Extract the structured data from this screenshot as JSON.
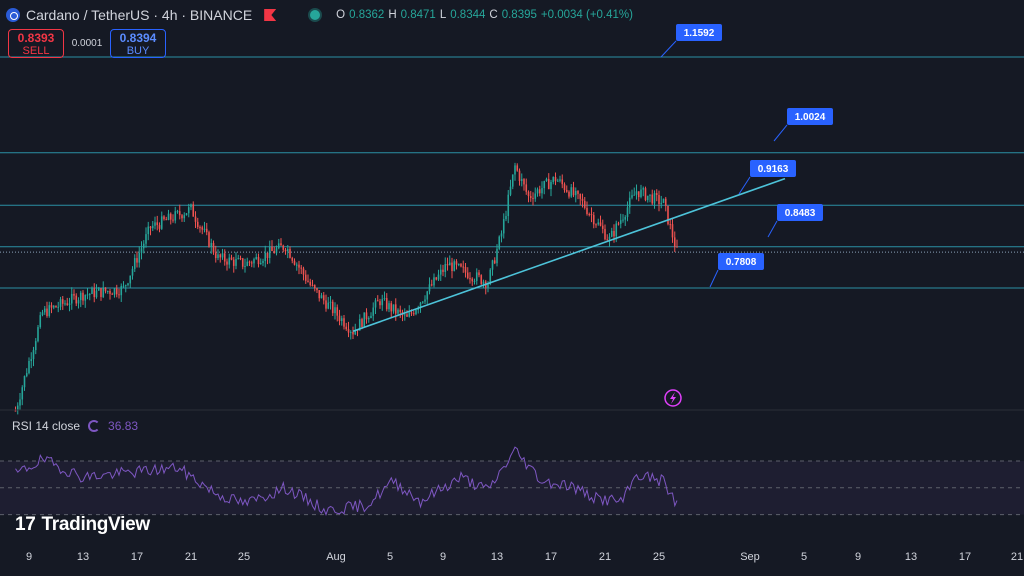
{
  "header": {
    "symbol_title": "Cardano / TetherUS · 4h · BINANCE",
    "ohlc": {
      "o_label": "O",
      "o": "0.8362",
      "h_label": "H",
      "h": "0.8471",
      "l_label": "L",
      "l": "0.8344",
      "c_label": "C",
      "c": "0.8395",
      "change": "+0.0034 (+0.41%)"
    }
  },
  "trade": {
    "sell_price": "0.8393",
    "sell_label": "SELL",
    "spread": "0.0001",
    "buy_price": "0.8394",
    "buy_label": "BUY"
  },
  "rsi": {
    "label": "RSI 14 close",
    "value": "36.83"
  },
  "brand": {
    "name": "TradingView"
  },
  "colors": {
    "background": "#151924",
    "up": "#26a69a",
    "down": "#ef5350",
    "level_line": "#2b8fa4",
    "trendline": "#4dc3d9",
    "callout": "#2962ff",
    "rsi": "#7e57c2"
  },
  "chart_data": {
    "type": "candlestick",
    "x_axis_labels": [
      "9",
      "13",
      "17",
      "21",
      "25",
      "Aug",
      "5",
      "9",
      "13",
      "17",
      "21",
      "25",
      "Sep",
      "5",
      "9",
      "13",
      "17",
      "21"
    ],
    "price_levels": [
      {
        "label": "1.1592",
        "value": 1.1592
      },
      {
        "label": "1.0024",
        "value": 1.0024
      },
      {
        "label": "0.9163",
        "value": 0.9163
      },
      {
        "label": "0.8483",
        "value": 0.8483
      },
      {
        "label": "0.7808",
        "value": 0.7808
      }
    ],
    "last_price": 0.8395,
    "trendline": {
      "from": {
        "date": "Aug 2",
        "price": 0.71
      },
      "to": {
        "date": "Sep 3",
        "price": 0.96
      }
    },
    "price_keypoints": [
      {
        "date": "Jul 8",
        "price": 0.58
      },
      {
        "date": "Jul 10",
        "price": 0.74
      },
      {
        "date": "Jul 13",
        "price": 0.77
      },
      {
        "date": "Jul 16",
        "price": 0.78
      },
      {
        "date": "Jul 18",
        "price": 0.88
      },
      {
        "date": "Jul 21",
        "price": 0.91
      },
      {
        "date": "Jul 23",
        "price": 0.83
      },
      {
        "date": "Jul 25",
        "price": 0.82
      },
      {
        "date": "Jul 28",
        "price": 0.85
      },
      {
        "date": "Jul 30",
        "price": 0.78
      },
      {
        "date": "Aug 2",
        "price": 0.71
      },
      {
        "date": "Aug 4",
        "price": 0.76
      },
      {
        "date": "Aug 6",
        "price": 0.73
      },
      {
        "date": "Aug 9",
        "price": 0.82
      },
      {
        "date": "Aug 12",
        "price": 0.79
      },
      {
        "date": "Aug 13",
        "price": 0.87
      },
      {
        "date": "Aug 14",
        "price": 0.98
      },
      {
        "date": "Aug 15",
        "price": 0.93
      },
      {
        "date": "Aug 17",
        "price": 0.96
      },
      {
        "date": "Aug 19",
        "price": 0.92
      },
      {
        "date": "Aug 21",
        "price": 0.86
      },
      {
        "date": "Aug 23",
        "price": 0.94
      },
      {
        "date": "Aug 25",
        "price": 0.92
      },
      {
        "date": "Aug 26",
        "price": 0.84
      }
    ],
    "rsi_series": {
      "name": "RSI 14 close",
      "upper_band": 70,
      "lower_band": 30,
      "keypoints": [
        {
          "date": "Jul 8",
          "value": 60
        },
        {
          "date": "Jul 10",
          "value": 71
        },
        {
          "date": "Jul 13",
          "value": 58
        },
        {
          "date": "Jul 17",
          "value": 62
        },
        {
          "date": "Jul 20",
          "value": 65
        },
        {
          "date": "Jul 23",
          "value": 45
        },
        {
          "date": "Jul 25",
          "value": 38
        },
        {
          "date": "Jul 28",
          "value": 50
        },
        {
          "date": "Jul 31",
          "value": 33
        },
        {
          "date": "Aug 3",
          "value": 37
        },
        {
          "date": "Aug 5",
          "value": 55
        },
        {
          "date": "Aug 7",
          "value": 40
        },
        {
          "date": "Aug 10",
          "value": 58
        },
        {
          "date": "Aug 12",
          "value": 48
        },
        {
          "date": "Aug 14",
          "value": 78
        },
        {
          "date": "Aug 16",
          "value": 55
        },
        {
          "date": "Aug 18",
          "value": 52
        },
        {
          "date": "Aug 20",
          "value": 42
        },
        {
          "date": "Aug 22",
          "value": 40
        },
        {
          "date": "Aug 23",
          "value": 60
        },
        {
          "date": "Aug 25",
          "value": 55
        },
        {
          "date": "Aug 26",
          "value": 37
        }
      ]
    }
  }
}
